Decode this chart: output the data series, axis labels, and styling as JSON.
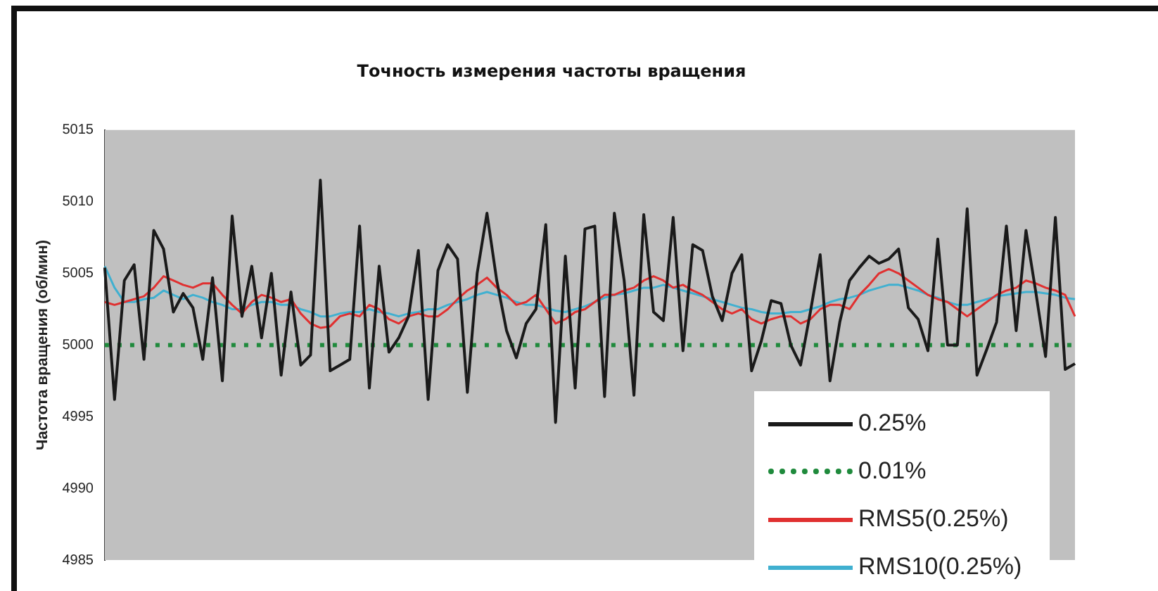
{
  "chart_data": {
    "type": "line",
    "title": "Точность измерения частоты вращения",
    "ylabel": "Частота вращения (об/мин)",
    "categories": [
      null,
      null,
      null,
      null,
      null,
      null,
      null,
      null,
      null,
      null,
      null,
      null,
      null,
      null,
      null,
      null,
      null,
      null,
      null,
      null,
      null,
      null,
      null,
      null,
      null,
      null,
      null,
      null,
      null,
      null,
      null,
      null,
      null,
      null,
      null,
      null,
      null,
      null,
      null,
      null,
      null,
      null,
      null,
      null,
      null,
      null,
      null,
      null,
      null,
      null,
      null,
      null,
      null,
      null,
      null,
      null,
      null,
      null,
      null,
      null,
      null,
      null,
      null,
      null,
      null,
      null,
      null,
      null,
      null,
      null,
      null,
      null,
      null,
      null,
      null,
      null,
      null,
      null,
      null,
      null,
      null,
      null,
      null,
      null,
      null,
      null,
      null,
      null,
      null,
      null,
      null,
      null,
      null,
      null,
      null,
      null,
      null,
      null,
      null,
      null
    ],
    "ylim": [
      4985,
      5015
    ],
    "yticks": [
      4985,
      4990,
      4995,
      5000,
      5005,
      5010,
      5015
    ],
    "grid": false,
    "legend": "bottom right",
    "marker": "none",
    "tick_labels": "y",
    "series": [
      {
        "name": "0.25%",
        "color": "#1a1a1a",
        "line_style": "solid",
        "values": [
          5005.4,
          4996.2,
          5004.5,
          5005.6,
          4999,
          5008,
          5006.7,
          5002.3,
          5003.6,
          5002.6,
          4999,
          5004.7,
          4997.5,
          5009,
          5002,
          5005.5,
          5000.5,
          5005,
          4997.9,
          5003.7,
          4998.6,
          4999.3,
          5011.5,
          4998.2,
          4998.6,
          4999,
          5008.3,
          4997,
          5005.5,
          4999.5,
          5000.5,
          5002,
          5006.6,
          4996.2,
          5005.2,
          5007,
          5006,
          4996.7,
          5005,
          5009.2,
          5004.5,
          5001,
          4999.1,
          5001.5,
          5002.5,
          5008.4,
          4994.6,
          5006.2,
          4997,
          5008.1,
          5008.3,
          4996.4,
          5009.2,
          5004.5,
          4996.5,
          5009.1,
          5002.3,
          5001.7,
          5008.9,
          4999.6,
          5007,
          5006.6,
          5003.4,
          5001.7,
          5005,
          5006.3,
          4998.2,
          5000.3,
          5003.1,
          5002.9,
          5000,
          4998.6,
          5002.3,
          5006.3,
          4997.5,
          5001.6,
          5004.5,
          5005.4,
          5006.2,
          5005.7,
          5006,
          5006.7,
          5002.6,
          5001.8,
          4999.6,
          5007.4,
          5000,
          5000,
          5009.5,
          4997.9,
          4999.7,
          5001.6,
          5008.3,
          5001,
          5008,
          5003.7,
          4999.2,
          5008.9,
          4998.3,
          4998.7
        ]
      },
      {
        "name": "0.01%",
        "color": "#1f8a3c",
        "line_style": "dotted",
        "values": [
          5000,
          5000,
          5000,
          5000,
          5000,
          5000,
          5000,
          5000,
          5000,
          5000,
          5000,
          5000,
          5000,
          5000,
          5000,
          5000,
          5000,
          5000,
          5000,
          5000,
          5000,
          5000,
          5000,
          5000,
          5000,
          5000,
          5000,
          5000,
          5000,
          5000,
          5000,
          5000,
          5000,
          5000,
          5000,
          5000,
          5000,
          5000,
          5000,
          5000,
          5000,
          5000,
          5000,
          5000,
          5000,
          5000,
          5000,
          5000,
          5000,
          5000,
          5000,
          5000,
          5000,
          5000,
          5000,
          5000,
          5000,
          5000,
          5000,
          5000,
          5000,
          5000,
          5000,
          5000,
          5000,
          5000,
          5000,
          5000,
          5000,
          5000,
          5000,
          5000,
          5000,
          5000,
          5000,
          5000,
          5000,
          5000,
          5000,
          5000,
          5000,
          5000,
          5000,
          5000,
          5000,
          5000,
          5000,
          5000,
          5000,
          5000,
          5000,
          5000,
          5000,
          5000,
          5000,
          5000,
          5000,
          5000,
          5000,
          5000
        ]
      },
      {
        "name": "RMS5(0.25%)",
        "color": "#e03030",
        "line_style": "solid",
        "values": [
          5003,
          5002.8,
          5003,
          5003.2,
          5003.4,
          5004,
          5004.8,
          5004.5,
          5004.2,
          5004,
          5004.3,
          5004.3,
          5003.5,
          5002.8,
          5002.2,
          5003,
          5003.5,
          5003.3,
          5003,
          5003.2,
          5002.2,
          5001.5,
          5001.2,
          5001.3,
          5002,
          5002.2,
          5002,
          5002.8,
          5002.5,
          5001.8,
          5001.5,
          5002,
          5002.2,
          5002,
          5002,
          5002.5,
          5003.2,
          5003.8,
          5004.2,
          5004.7,
          5004,
          5003.5,
          5002.8,
          5003,
          5003.5,
          5002.5,
          5001.5,
          5001.8,
          5002.3,
          5002.5,
          5003,
          5003.5,
          5003.5,
          5003.8,
          5004,
          5004.5,
          5004.8,
          5004.5,
          5004,
          5004.2,
          5003.8,
          5003.5,
          5003,
          5002.5,
          5002.2,
          5002.5,
          5001.8,
          5001.5,
          5001.8,
          5002,
          5002,
          5001.5,
          5001.8,
          5002.5,
          5002.8,
          5002.8,
          5002.5,
          5003.5,
          5004.2,
          5005,
          5005.3,
          5005,
          5004.5,
          5004,
          5003.5,
          5003.2,
          5003,
          5002.5,
          5002,
          5002.5,
          5003,
          5003.5,
          5003.8,
          5004,
          5004.5,
          5004.3,
          5004,
          5003.8,
          5003.5,
          5002
        ]
      },
      {
        "name": "RMS10(0.25%)",
        "color": "#40b0d0",
        "line_style": "solid",
        "values": [
          5005.5,
          5004,
          5003,
          5003,
          5003.2,
          5003.3,
          5003.8,
          5003.5,
          5003.2,
          5003.5,
          5003.3,
          5003,
          5002.8,
          5002.5,
          5002.5,
          5002.8,
          5003,
          5003,
          5002.8,
          5002.8,
          5002.5,
          5002.3,
          5002,
          5002,
          5002.2,
          5002.3,
          5002.3,
          5002.5,
          5002.3,
          5002.2,
          5002,
          5002.2,
          5002.3,
          5002.5,
          5002.5,
          5002.8,
          5003,
          5003.2,
          5003.5,
          5003.7,
          5003.5,
          5003.3,
          5003,
          5002.8,
          5002.8,
          5002.6,
          5002.4,
          5002.3,
          5002.5,
          5002.7,
          5003,
          5003.3,
          5003.5,
          5003.6,
          5003.8,
          5004,
          5004,
          5004.2,
          5004,
          5003.8,
          5003.6,
          5003.4,
          5003.2,
          5003,
          5002.8,
          5002.6,
          5002.5,
          5002.3,
          5002.2,
          5002.2,
          5002.3,
          5002.3,
          5002.5,
          5002.7,
          5003,
          5003.2,
          5003.3,
          5003.5,
          5003.8,
          5004,
          5004.2,
          5004.2,
          5004,
          5003.8,
          5003.5,
          5003.3,
          5003,
          5002.8,
          5002.8,
          5003,
          5003.2,
          5003.4,
          5003.5,
          5003.6,
          5003.7,
          5003.7,
          5003.6,
          5003.5,
          5003.3,
          5003.2
        ]
      }
    ]
  }
}
